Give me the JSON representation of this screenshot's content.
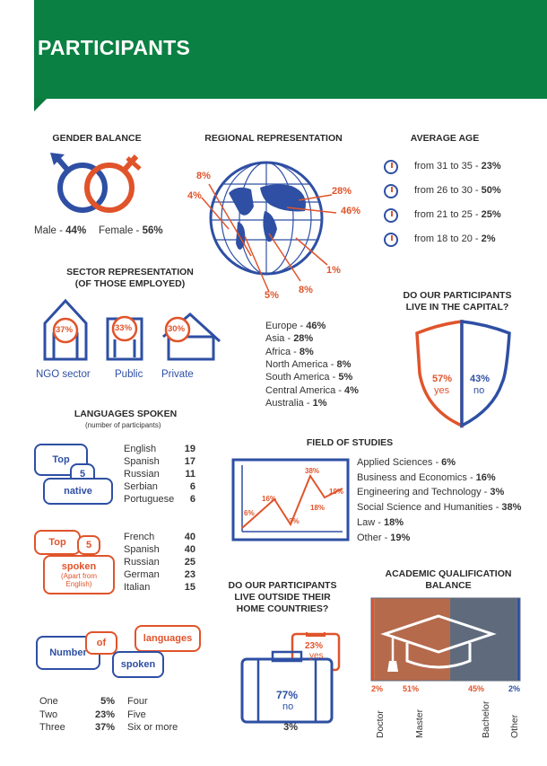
{
  "header": {
    "title": "PARTICIPANTS"
  },
  "gender": {
    "title": "GENDER BALANCE",
    "male_label": "Male - ",
    "male_value": "44%",
    "female_label": "Female - ",
    "female_value": "56%"
  },
  "regional": {
    "title": "REGIONAL REPRESENTATION",
    "map_labels": [
      "8%",
      "4%",
      "28%",
      "46%",
      "1%",
      "8%",
      "5%"
    ],
    "items": [
      {
        "label": "Europe - ",
        "value": "46%"
      },
      {
        "label": "Asia - ",
        "value": "28%"
      },
      {
        "label": "Africa - ",
        "value": "8%"
      },
      {
        "label": "North America - ",
        "value": "8%"
      },
      {
        "label": "South America - ",
        "value": "5%"
      },
      {
        "label": "Central America - ",
        "value": "4%"
      },
      {
        "label": "Australia - ",
        "value": "1%"
      }
    ]
  },
  "age": {
    "title": "AVERAGE AGE",
    "items": [
      {
        "label": "from 31 to 35 - ",
        "value": "23%"
      },
      {
        "label": "from 26 to 30 - ",
        "value": "50%"
      },
      {
        "label": "from 21 to 25 - ",
        "value": "25%"
      },
      {
        "label": "from 18 to 20 - ",
        "value": "2%"
      }
    ]
  },
  "sector": {
    "title": "SECTOR REPRESENTATION\n(OF THOSE EMPLOYED)",
    "items": [
      {
        "label": "NGO sector",
        "value": "37%"
      },
      {
        "label": "Public",
        "value": "33%"
      },
      {
        "label": "Private",
        "value": "30%"
      }
    ]
  },
  "capital": {
    "title": "DO OUR PARTICIPANTS\nLIVE IN THE CAPITAL?",
    "yes_value": "57%",
    "yes_label": "yes",
    "no_value": "43%",
    "no_label": "no"
  },
  "languages": {
    "title": "LANGUAGES SPOKEN",
    "subtitle": "(number of participants)",
    "native_bubbles": {
      "top": "Top",
      "five": "5",
      "native": "native"
    },
    "native": [
      {
        "name": "English",
        "count": "19"
      },
      {
        "name": "Spanish",
        "count": "17"
      },
      {
        "name": "Russian",
        "count": "11"
      },
      {
        "name": "Serbian",
        "count": "6"
      },
      {
        "name": "Portuguese",
        "count": "6"
      }
    ],
    "spoken_bubbles": {
      "top": "Top",
      "five": "5",
      "spoken": "spoken",
      "note": "(Apart from English)"
    },
    "spoken": [
      {
        "name": "French",
        "count": "40"
      },
      {
        "name": "Spanish",
        "count": "40"
      },
      {
        "name": "Russian",
        "count": "25"
      },
      {
        "name": "German",
        "count": "23"
      },
      {
        "name": "Italian",
        "count": "15"
      }
    ],
    "number_bubbles": {
      "number": "Number",
      "of": "of",
      "languages": "languages",
      "spoken": "spoken"
    },
    "number": [
      {
        "name": "One",
        "value": "5%"
      },
      {
        "name": "Two",
        "value": "23%"
      },
      {
        "name": "Three",
        "value": "37%"
      },
      {
        "name": "Four",
        "value": "24%"
      },
      {
        "name": "Five",
        "value": "8%"
      },
      {
        "name": "Six or more",
        "value": "3%"
      }
    ]
  },
  "studies": {
    "title": "FIELD OF STUDIES",
    "items": [
      {
        "label": "Applied Sciences - ",
        "value": "6%"
      },
      {
        "label": "Business and Economics - ",
        "value": "16%"
      },
      {
        "label": "Engineering and Technology - ",
        "value": "3%"
      },
      {
        "label": "Social Science and Humanities - ",
        "value": "38%"
      },
      {
        "label": "Law - ",
        "value": "18%"
      },
      {
        "label": "Other - ",
        "value": "19%"
      }
    ]
  },
  "home": {
    "title": "DO OUR PARTICIPANTS\nLIVE OUTSIDE THEIR\nHOME COUNTRIES?",
    "no_value": "77%",
    "no_label": "no",
    "yes_value": "23%",
    "yes_label": "yes"
  },
  "chart_data": {
    "type": "bar",
    "title": "ACADEMIC QUALIFICATION BALANCE",
    "categories": [
      "Doctor",
      "Master",
      "Bachelor",
      "Other"
    ],
    "values": [
      2,
      51,
      45,
      2
    ],
    "value_labels": [
      "2%",
      "51%",
      "45%",
      "2%"
    ],
    "colors": {
      "orange": "#e0542b",
      "blue": "#2e4fa3",
      "brown": "#b56a4c",
      "gray": "#5f6b7c"
    }
  }
}
